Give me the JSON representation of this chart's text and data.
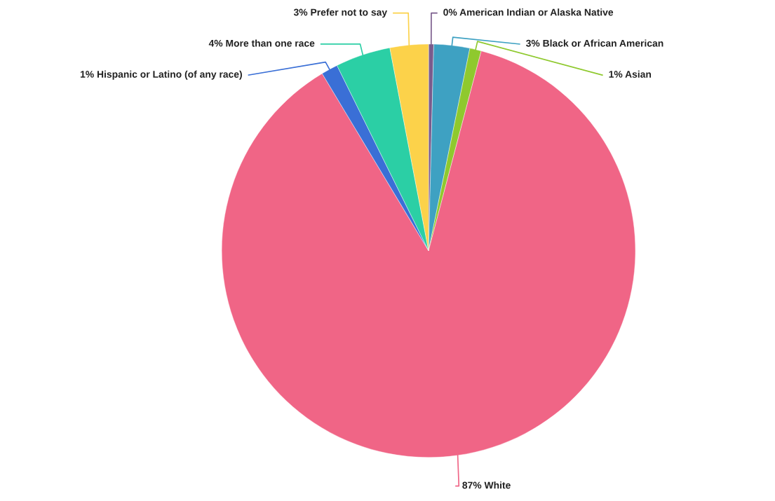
{
  "chart_data": {
    "type": "pie",
    "categories": [
      "American Indian or Alaska Native",
      "Black or African American",
      "Asian",
      "White",
      "Hispanic or Latino (of any race)",
      "More than one race",
      "Prefer not to say"
    ],
    "values": [
      0.4,
      2.8,
      0.9,
      87.3,
      1.3,
      4.3,
      3.0
    ],
    "value_labels": [
      "0%",
      "3%",
      "1%",
      "87%",
      "1%",
      "4%",
      "3%"
    ],
    "colors": [
      "#7a5c8c",
      "#3ea1c2",
      "#8fc92e",
      "#f06586",
      "#3a6fd6",
      "#2bcfa5",
      "#fcd24a"
    ]
  }
}
